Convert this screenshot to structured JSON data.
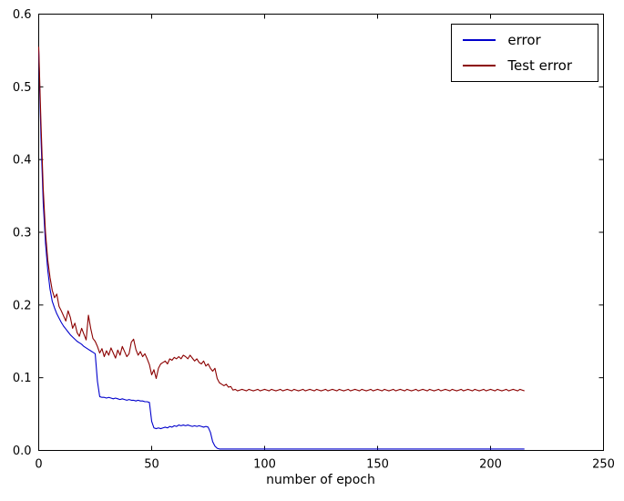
{
  "chart_data": {
    "type": "line",
    "title": "",
    "xlabel": "number of epoch",
    "ylabel": "",
    "xlim": [
      0,
      250
    ],
    "ylim": [
      0.0,
      0.6
    ],
    "x_ticks": [
      0,
      50,
      100,
      150,
      200,
      250
    ],
    "y_ticks": [
      0.0,
      0.1,
      0.2,
      0.3,
      0.4,
      0.5,
      0.6
    ],
    "grid": false,
    "legend_position": "upper right",
    "x_start": 0,
    "x_step": 1,
    "series": [
      {
        "name": "error",
        "color": "#0000cc",
        "values": [
          0.55,
          0.43,
          0.34,
          0.285,
          0.248,
          0.222,
          0.205,
          0.196,
          0.188,
          0.182,
          0.176,
          0.171,
          0.167,
          0.163,
          0.159,
          0.156,
          0.153,
          0.15,
          0.148,
          0.146,
          0.143,
          0.141,
          0.139,
          0.137,
          0.135,
          0.133,
          0.095,
          0.074,
          0.073,
          0.073,
          0.072,
          0.073,
          0.072,
          0.071,
          0.072,
          0.071,
          0.07,
          0.071,
          0.07,
          0.069,
          0.07,
          0.069,
          0.069,
          0.068,
          0.069,
          0.068,
          0.068,
          0.067,
          0.067,
          0.066,
          0.04,
          0.031,
          0.03,
          0.031,
          0.03,
          0.031,
          0.032,
          0.031,
          0.033,
          0.032,
          0.034,
          0.033,
          0.035,
          0.034,
          0.035,
          0.034,
          0.035,
          0.034,
          0.033,
          0.034,
          0.033,
          0.034,
          0.033,
          0.032,
          0.033,
          0.032,
          0.025,
          0.012,
          0.006,
          0.003,
          0.002,
          0.002,
          0.002,
          0.002,
          0.002,
          0.002,
          0.002,
          0.002,
          0.002,
          0.002,
          0.002,
          0.002,
          0.002,
          0.002,
          0.002,
          0.002,
          0.002,
          0.002,
          0.002,
          0.002,
          0.002,
          0.002,
          0.002,
          0.002,
          0.002,
          0.002,
          0.002,
          0.002,
          0.002,
          0.002,
          0.002,
          0.002,
          0.002,
          0.002,
          0.002,
          0.002,
          0.002,
          0.002,
          0.002,
          0.002,
          0.002,
          0.002,
          0.002,
          0.002,
          0.002,
          0.002,
          0.002,
          0.002,
          0.002,
          0.002,
          0.002,
          0.002,
          0.002,
          0.002,
          0.002,
          0.002,
          0.002,
          0.002,
          0.002,
          0.002,
          0.002,
          0.002,
          0.002,
          0.002,
          0.002,
          0.002,
          0.002,
          0.002,
          0.002,
          0.002,
          0.002,
          0.002,
          0.002,
          0.002,
          0.002,
          0.002,
          0.002,
          0.002,
          0.002,
          0.002,
          0.002,
          0.002,
          0.002,
          0.002,
          0.002,
          0.002,
          0.002,
          0.002,
          0.002,
          0.002,
          0.002,
          0.002,
          0.002,
          0.002,
          0.002,
          0.002,
          0.002,
          0.002,
          0.002,
          0.002,
          0.002,
          0.002,
          0.002,
          0.002,
          0.002,
          0.002,
          0.002,
          0.002,
          0.002,
          0.002,
          0.002,
          0.002,
          0.002,
          0.002,
          0.002,
          0.002,
          0.002,
          0.002,
          0.002,
          0.002,
          0.002,
          0.002,
          0.002,
          0.002,
          0.002,
          0.002,
          0.002,
          0.002,
          0.002,
          0.002,
          0.002,
          0.002,
          0.002,
          0.002,
          0.002,
          0.002
        ]
      },
      {
        "name": "Test error",
        "color": "#8b0000",
        "values": [
          0.555,
          0.45,
          0.36,
          0.3,
          0.262,
          0.238,
          0.22,
          0.21,
          0.215,
          0.198,
          0.192,
          0.185,
          0.178,
          0.192,
          0.183,
          0.168,
          0.175,
          0.162,
          0.157,
          0.168,
          0.16,
          0.152,
          0.186,
          0.168,
          0.154,
          0.15,
          0.143,
          0.134,
          0.14,
          0.129,
          0.137,
          0.131,
          0.141,
          0.134,
          0.127,
          0.138,
          0.131,
          0.143,
          0.136,
          0.129,
          0.133,
          0.149,
          0.153,
          0.139,
          0.131,
          0.136,
          0.129,
          0.133,
          0.126,
          0.118,
          0.104,
          0.111,
          0.099,
          0.113,
          0.119,
          0.121,
          0.123,
          0.119,
          0.126,
          0.124,
          0.128,
          0.126,
          0.129,
          0.126,
          0.131,
          0.129,
          0.126,
          0.131,
          0.127,
          0.123,
          0.126,
          0.121,
          0.119,
          0.123,
          0.116,
          0.119,
          0.113,
          0.109,
          0.113,
          0.099,
          0.093,
          0.091,
          0.089,
          0.091,
          0.087,
          0.088,
          0.083,
          0.084,
          0.082,
          0.083,
          0.084,
          0.083,
          0.082,
          0.084,
          0.083,
          0.082,
          0.083,
          0.084,
          0.082,
          0.083,
          0.084,
          0.083,
          0.082,
          0.084,
          0.083,
          0.082,
          0.083,
          0.084,
          0.082,
          0.083,
          0.084,
          0.083,
          0.082,
          0.084,
          0.083,
          0.082,
          0.083,
          0.084,
          0.082,
          0.083,
          0.084,
          0.083,
          0.082,
          0.084,
          0.083,
          0.082,
          0.083,
          0.084,
          0.082,
          0.083,
          0.084,
          0.083,
          0.082,
          0.084,
          0.083,
          0.082,
          0.083,
          0.084,
          0.082,
          0.083,
          0.084,
          0.083,
          0.082,
          0.084,
          0.083,
          0.082,
          0.083,
          0.084,
          0.082,
          0.083,
          0.084,
          0.083,
          0.082,
          0.084,
          0.083,
          0.082,
          0.083,
          0.084,
          0.082,
          0.083,
          0.084,
          0.083,
          0.082,
          0.084,
          0.083,
          0.082,
          0.083,
          0.084,
          0.082,
          0.083,
          0.084,
          0.083,
          0.082,
          0.084,
          0.083,
          0.082,
          0.083,
          0.084,
          0.082,
          0.083,
          0.084,
          0.083,
          0.082,
          0.084,
          0.083,
          0.082,
          0.083,
          0.084,
          0.082,
          0.083,
          0.084,
          0.083,
          0.082,
          0.084,
          0.083,
          0.082,
          0.083,
          0.084,
          0.082,
          0.083,
          0.084,
          0.083,
          0.082,
          0.084,
          0.083,
          0.082,
          0.083,
          0.084,
          0.082,
          0.083,
          0.084,
          0.083,
          0.082,
          0.084,
          0.083,
          0.082
        ]
      }
    ]
  }
}
